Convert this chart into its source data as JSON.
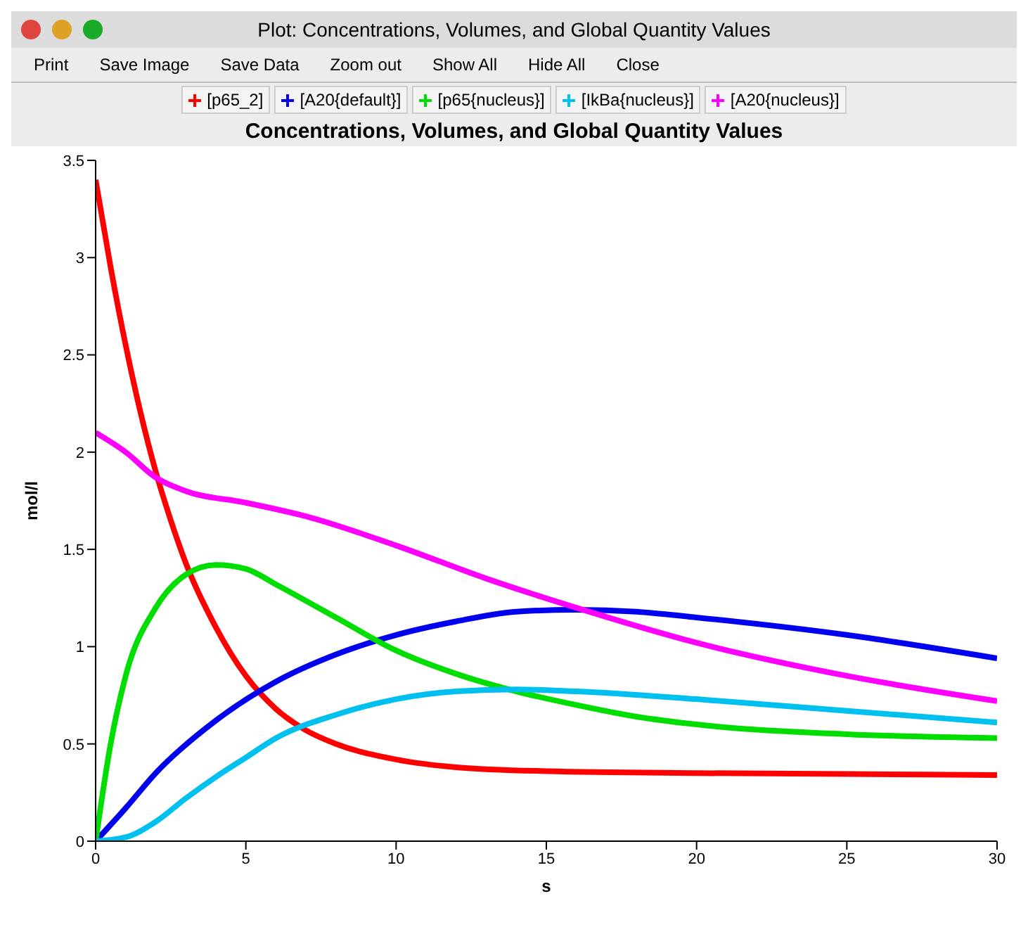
{
  "chart_data": {
    "type": "line",
    "title": "Concentrations, Volumes, and Global Quantity Values",
    "annotations": [
      "Plot: Concentrations, Volumes, and Global Quantity Values",
      "Print",
      "Save Image",
      "Save Data",
      "Zoom out",
      "Show All",
      "Hide All",
      "Close"
    ],
    "xlabel": "s",
    "ylabel": "mol/l",
    "xlim": [
      0,
      30
    ],
    "xticks": [
      0,
      5,
      10,
      15,
      20,
      25,
      30
    ],
    "ylim": [
      0,
      3.5
    ],
    "yticks": [
      0,
      0.5,
      1,
      1.5,
      2,
      2.5,
      3,
      3.5
    ],
    "grid": false,
    "legend": "top",
    "marker": "none",
    "line_style": "solid",
    "series": [
      {
        "name": "[p65_2]",
        "color": "#ff0000",
        "x": [
          0,
          0.5,
          1,
          1.5,
          2,
          2.5,
          3,
          4,
          5,
          6,
          7,
          8,
          10,
          12,
          15,
          20,
          25,
          30
        ],
        "values": [
          3.4,
          2.95,
          2.55,
          2.2,
          1.9,
          1.65,
          1.43,
          1.1,
          0.85,
          0.68,
          0.57,
          0.5,
          0.42,
          0.38,
          0.36,
          0.35,
          0.345,
          0.34
        ]
      },
      {
        "name": "[A20{default}]",
        "color": "#0000ee",
        "x": [
          0,
          1,
          2,
          4,
          6,
          8,
          10,
          12,
          14,
          16,
          18,
          20,
          25,
          30
        ],
        "values": [
          0,
          0.17,
          0.35,
          0.62,
          0.82,
          0.96,
          1.06,
          1.13,
          1.18,
          1.19,
          1.18,
          1.15,
          1.06,
          0.94
        ]
      },
      {
        "name": "[p65{nucleus}]",
        "color": "#00dd00",
        "x": [
          0,
          0.5,
          1,
          2,
          3,
          4,
          5,
          6,
          8,
          10,
          12,
          14,
          16,
          18,
          20,
          25,
          30
        ],
        "values": [
          0,
          0.5,
          0.85,
          1.2,
          1.37,
          1.42,
          1.4,
          1.32,
          1.15,
          0.98,
          0.86,
          0.77,
          0.7,
          0.64,
          0.6,
          0.55,
          0.53
        ]
      },
      {
        "name": "[IkBa{nucleus}]",
        "color": "#00c0f0",
        "x": [
          0,
          1,
          2,
          3,
          4,
          5,
          6,
          8,
          10,
          12,
          14,
          16,
          20,
          25,
          30
        ],
        "values": [
          0,
          0.02,
          0.1,
          0.22,
          0.33,
          0.43,
          0.53,
          0.65,
          0.73,
          0.77,
          0.78,
          0.77,
          0.73,
          0.67,
          0.61
        ]
      },
      {
        "name": "[A20{nucleus}]",
        "color": "#ff00ff",
        "x": [
          0,
          1,
          2,
          3,
          5,
          7,
          10,
          13,
          16,
          20,
          25,
          30
        ],
        "values": [
          2.1,
          2.0,
          1.87,
          1.8,
          1.74,
          1.67,
          1.52,
          1.35,
          1.2,
          1.02,
          0.85,
          0.72
        ]
      }
    ]
  }
}
